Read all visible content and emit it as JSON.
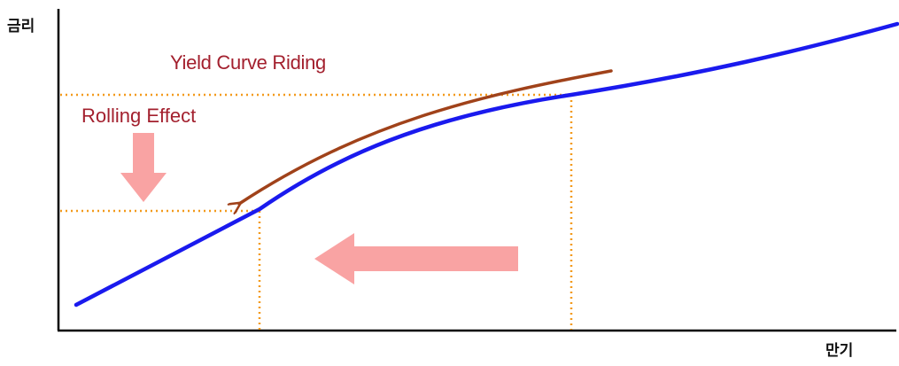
{
  "axes": {
    "y_label": "금리",
    "x_label": "만기"
  },
  "annotations": {
    "yield_curve_riding": "Yield Curve Riding",
    "rolling_effect": "Rolling Effect"
  },
  "colors": {
    "yield_curve": "#1a1aee",
    "riding_arrow": "#a0421a",
    "guide_lines": "#f39a1c",
    "block_arrows": "#f9a3a3",
    "annotation_text": "#a3202e",
    "axes": "#000000"
  }
}
